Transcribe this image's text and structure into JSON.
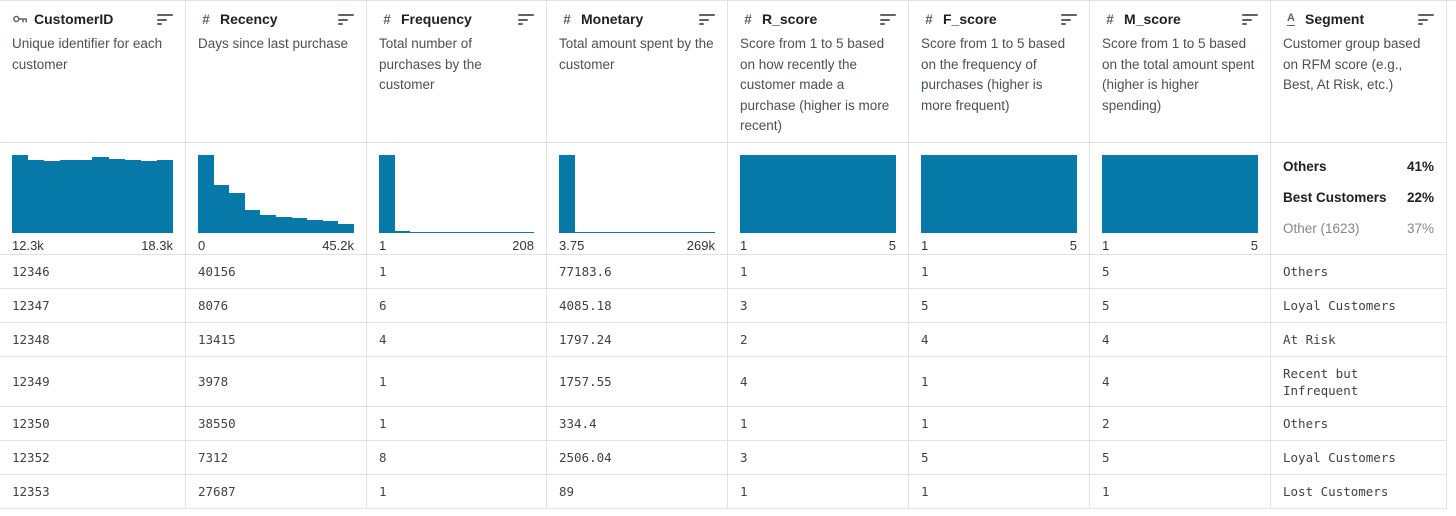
{
  "colors": {
    "bar": "#0679a9",
    "border": "#e2e2e2",
    "title_text": "#202124",
    "muted_text": "#5f6368"
  },
  "columns": [
    {
      "name": "CustomerID",
      "type": "id",
      "icon": "key-icon",
      "description": "Unique identifier for each customer",
      "histogram": {
        "type": "bar",
        "bins": [
          1.0,
          0.94,
          0.92,
          0.94,
          0.94,
          0.97,
          0.95,
          0.94,
          0.92,
          0.94
        ],
        "min_label": "12.3k",
        "max_label": "18.3k"
      }
    },
    {
      "name": "Recency",
      "type": "numeric",
      "icon": "hash-icon",
      "description": "Days since last purchase",
      "histogram": {
        "type": "bar",
        "bins": [
          1.0,
          0.62,
          0.51,
          0.29,
          0.23,
          0.21,
          0.19,
          0.17,
          0.15,
          0.11
        ],
        "min_label": "0",
        "max_label": "45.2k"
      }
    },
    {
      "name": "Frequency",
      "type": "numeric",
      "icon": "hash-icon",
      "description": "Total number of purchases by the customer",
      "histogram": {
        "type": "bar",
        "bins": [
          1.0,
          0.025,
          0.013,
          0.013,
          0.013,
          0.013,
          0.013,
          0.013,
          0.013,
          0.013
        ],
        "min_label": "1",
        "max_label": "208"
      }
    },
    {
      "name": "Monetary",
      "type": "numeric",
      "icon": "hash-icon",
      "description": "Total amount spent by the customer",
      "histogram": {
        "type": "bar",
        "bins": [
          1.0,
          0.013,
          0.013,
          0.013,
          0.013,
          0.013,
          0.013,
          0.013,
          0.013,
          0.013
        ],
        "min_label": "3.75",
        "max_label": "269k"
      }
    },
    {
      "name": "R_score",
      "type": "numeric",
      "icon": "hash-icon",
      "description": "Score from 1 to 5 based on how recently the customer made a purchase (higher is more recent)",
      "histogram": {
        "type": "bar",
        "bins": [
          1,
          1,
          1,
          1,
          1,
          1,
          1,
          1,
          1,
          1
        ],
        "min_label": "1",
        "max_label": "5"
      }
    },
    {
      "name": "F_score",
      "type": "numeric",
      "icon": "hash-icon",
      "description": "Score from 1 to 5 based on the frequency of purchases (higher is more frequent)",
      "histogram": {
        "type": "bar",
        "bins": [
          1,
          1,
          1,
          1,
          1,
          1,
          1,
          1,
          1,
          1
        ],
        "min_label": "1",
        "max_label": "5"
      }
    },
    {
      "name": "M_score",
      "type": "numeric",
      "icon": "hash-icon",
      "description": "Score from 1 to 5 based on the total amount spent (higher is higher spending)",
      "histogram": {
        "type": "bar",
        "bins": [
          1,
          1,
          1,
          1,
          1,
          1,
          1,
          1,
          1,
          1
        ],
        "min_label": "1",
        "max_label": "5"
      }
    },
    {
      "name": "Segment",
      "type": "string",
      "icon": "string-icon",
      "description": "Customer group based on RFM score (e.g., Best, At Risk, etc.)",
      "categories": [
        {
          "label": "Others",
          "percent": "41%",
          "emphasis": true
        },
        {
          "label": "Best Customers",
          "percent": "22%",
          "emphasis": true
        },
        {
          "label": "Other (1623)",
          "percent": "37%",
          "emphasis": false
        }
      ]
    }
  ],
  "rows": [
    [
      "12346",
      "40156",
      "1",
      "77183.6",
      "1",
      "1",
      "5",
      "Others"
    ],
    [
      "12347",
      "8076",
      "6",
      "4085.18",
      "3",
      "5",
      "5",
      "Loyal Customers"
    ],
    [
      "12348",
      "13415",
      "4",
      "1797.24",
      "2",
      "4",
      "4",
      "At Risk"
    ],
    [
      "12349",
      "3978",
      "1",
      "1757.55",
      "4",
      "1",
      "4",
      "Recent but Infrequent"
    ],
    [
      "12350",
      "38550",
      "1",
      "334.4",
      "1",
      "1",
      "2",
      "Others"
    ],
    [
      "12352",
      "7312",
      "8",
      "2506.04",
      "3",
      "5",
      "5",
      "Loyal Customers"
    ],
    [
      "12353",
      "27687",
      "1",
      "89",
      "1",
      "1",
      "1",
      "Lost Customers"
    ]
  ]
}
